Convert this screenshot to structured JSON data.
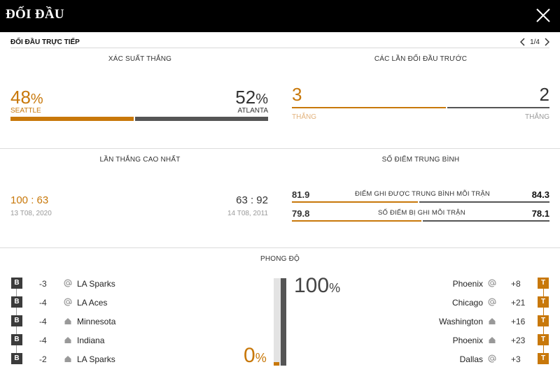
{
  "header": {
    "title": "ĐỐI ĐẦU"
  },
  "subheader": {
    "title": "ĐỐI ĐẦU TRỰC TIẾP",
    "pager": "1/4"
  },
  "win_prob": {
    "title": "XÁC SUẤT THẮNG",
    "home": {
      "value": "48",
      "unit": "%",
      "name": "SEATTLE"
    },
    "away": {
      "value": "52",
      "unit": "%",
      "name": "ATLANTA"
    },
    "home_fraction": 0.48
  },
  "previous": {
    "title": "CÁC LẦN ĐỐI ĐẦU TRƯỚC",
    "home": {
      "value": "3",
      "label": "THẮNG"
    },
    "away": {
      "value": "2",
      "label": "THẮNG"
    },
    "home_fraction": 0.6
  },
  "biggest_win": {
    "title": "LẦN THẮNG CAO NHẤT",
    "home": {
      "score": "100 : 63",
      "date": "13 T08, 2020"
    },
    "away": {
      "score": "63 : 92",
      "date": "14 T08, 2011"
    }
  },
  "avg_points": {
    "title": "SỐ ĐIỂM TRUNG BÌNH",
    "rows": [
      {
        "label": "ĐIỂM GHI ĐƯỢC TRUNG BÌNH MỖI TRẬN",
        "home": "81.9",
        "away": "84.3",
        "home_fraction": 0.493
      },
      {
        "label": "SỐ ĐIỂM BỊ GHI MỖI TRẬN",
        "home": "79.8",
        "away": "78.1",
        "home_fraction": 0.505
      }
    ]
  },
  "form": {
    "title": "PHONG ĐỘ",
    "home": [
      {
        "result": "B",
        "diff": "-3",
        "venue": "away",
        "opponent": "LA Sparks"
      },
      {
        "result": "B",
        "diff": "-4",
        "venue": "away",
        "opponent": "LA Aces"
      },
      {
        "result": "B",
        "diff": "-4",
        "venue": "home",
        "opponent": "Minnesota"
      },
      {
        "result": "B",
        "diff": "-4",
        "venue": "home",
        "opponent": "Indiana"
      },
      {
        "result": "B",
        "diff": "-2",
        "venue": "home",
        "opponent": "LA Sparks"
      }
    ],
    "away": [
      {
        "result": "T",
        "diff": "+8",
        "venue": "away",
        "opponent": "Phoenix"
      },
      {
        "result": "T",
        "diff": "+21",
        "venue": "away",
        "opponent": "Chicago"
      },
      {
        "result": "T",
        "diff": "+16",
        "venue": "home",
        "opponent": "Washington"
      },
      {
        "result": "T",
        "diff": "+23",
        "venue": "home",
        "opponent": "Phoenix"
      },
      {
        "result": "T",
        "diff": "+3",
        "venue": "away",
        "opponent": "Dallas"
      }
    ],
    "home_pct": "0",
    "away_pct": "100",
    "unit": "%"
  },
  "colors": {
    "accent": "#c8780a",
    "dark": "#555555",
    "header_bg": "#000000"
  },
  "icons": {
    "close": "close-icon",
    "prev": "chevron-left-icon",
    "next": "chevron-right-icon",
    "away_venue": "at-icon",
    "home_venue": "house-icon"
  }
}
